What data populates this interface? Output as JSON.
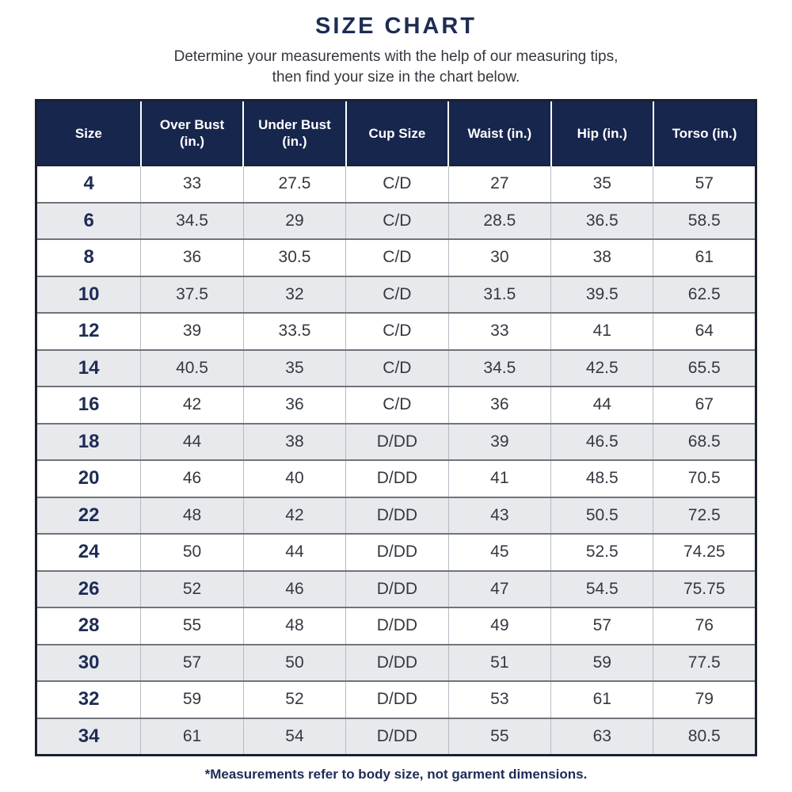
{
  "page": {
    "title": "SIZE CHART",
    "subtitle_line1": "Determine your measurements with the help of our measuring tips,",
    "subtitle_line2": "then find your size in the chart below.",
    "footnote": "*Measurements refer to body size, not garment dimensions."
  },
  "colors": {
    "header_bg": "#17264d",
    "title_text": "#1e2c55",
    "size_column_text": "#1e2c55",
    "cell_text": "#343840",
    "alt_row_bg": "#e7e9ed",
    "row_divider": "#70747a",
    "cell_divider": "#b7bbc2",
    "outer_border": "#1b2132"
  },
  "chart_data": {
    "type": "table",
    "title": "SIZE CHART",
    "columns": [
      "Size",
      "Over Bust (in.)",
      "Under Bust (in.)",
      "Cup Size",
      "Waist (in.)",
      "Hip (in.)",
      "Torso (in.)"
    ],
    "rows": [
      [
        "4",
        "33",
        "27.5",
        "C/D",
        "27",
        "35",
        "57"
      ],
      [
        "6",
        "34.5",
        "29",
        "C/D",
        "28.5",
        "36.5",
        "58.5"
      ],
      [
        "8",
        "36",
        "30.5",
        "C/D",
        "30",
        "38",
        "61"
      ],
      [
        "10",
        "37.5",
        "32",
        "C/D",
        "31.5",
        "39.5",
        "62.5"
      ],
      [
        "12",
        "39",
        "33.5",
        "C/D",
        "33",
        "41",
        "64"
      ],
      [
        "14",
        "40.5",
        "35",
        "C/D",
        "34.5",
        "42.5",
        "65.5"
      ],
      [
        "16",
        "42",
        "36",
        "C/D",
        "36",
        "44",
        "67"
      ],
      [
        "18",
        "44",
        "38",
        "D/DD",
        "39",
        "46.5",
        "68.5"
      ],
      [
        "20",
        "46",
        "40",
        "D/DD",
        "41",
        "48.5",
        "70.5"
      ],
      [
        "22",
        "48",
        "42",
        "D/DD",
        "43",
        "50.5",
        "72.5"
      ],
      [
        "24",
        "50",
        "44",
        "D/DD",
        "45",
        "52.5",
        "74.25"
      ],
      [
        "26",
        "52",
        "46",
        "D/DD",
        "47",
        "54.5",
        "75.75"
      ],
      [
        "28",
        "55",
        "48",
        "D/DD",
        "49",
        "57",
        "76"
      ],
      [
        "30",
        "57",
        "50",
        "D/DD",
        "51",
        "59",
        "77.5"
      ],
      [
        "32",
        "59",
        "52",
        "D/DD",
        "53",
        "61",
        "79"
      ],
      [
        "34",
        "61",
        "54",
        "D/DD",
        "55",
        "63",
        "80.5"
      ]
    ],
    "layout": {
      "header_style": "navy background, white bold text",
      "row_striping": "odd rows white, even rows light gray",
      "alignment": "all cells centered"
    }
  }
}
